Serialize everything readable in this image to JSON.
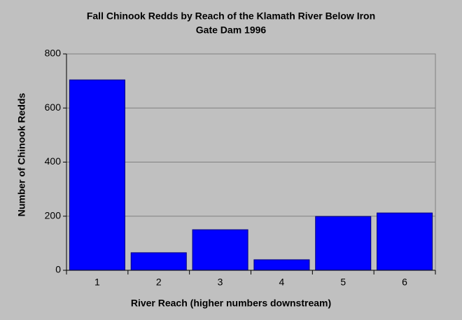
{
  "chart_data": {
    "type": "bar",
    "title": [
      "Fall Chinook Redds by Reach of the Klamath River Below Iron",
      "Gate Dam 1996"
    ],
    "x_label": "River Reach (higher numbers downstream)",
    "y_label": "Number of Chinook Redds",
    "categories": [
      "1",
      "2",
      "3",
      "4",
      "5",
      "6"
    ],
    "values": [
      704,
      65,
      150,
      39,
      199,
      212
    ],
    "color": "#0000ff",
    "ylim": [
      0,
      800
    ],
    "yticks": [
      0,
      200,
      400,
      600,
      800
    ],
    "grid": true
  }
}
